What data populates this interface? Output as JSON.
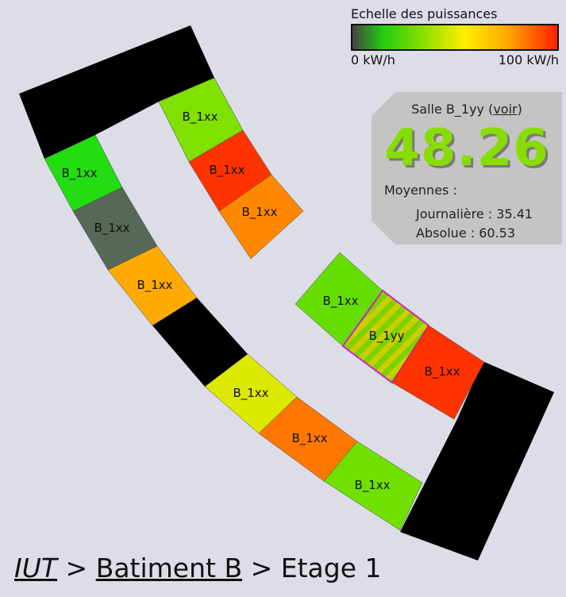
{
  "legend": {
    "title": "Echelle des puissances",
    "min_label": "0 kW/h",
    "max_label": "100 kW/h"
  },
  "info_panel": {
    "room_prefix": "Salle B_1yy (",
    "view_link": "voir",
    "room_suffix": ")",
    "power_value": "48.26",
    "averages_title": "Moyennes :",
    "daily": "Journalière : 35.41",
    "absolute": "Absolue : 60.53"
  },
  "breadcrumb": {
    "root": "IUT",
    "sep1": " > ",
    "building": "Batiment B",
    "sep2": " > ",
    "floor": "Etage 1"
  },
  "colors": {
    "background": "#dddde8",
    "panel": "#c4c4c4",
    "selected_outline": "#cc22cc",
    "power_value": "#88dd00"
  },
  "rooms": [
    {
      "label": "B_1xx",
      "color": "#80e000"
    },
    {
      "label": "B_1xx",
      "color": "#ff3300"
    },
    {
      "label": "B_1xx",
      "color": "#ff8800"
    },
    {
      "label": "B_1xx",
      "color": "#22dd11"
    },
    {
      "label": "B_1xx",
      "color": "#586858"
    },
    {
      "label": "B_1xx",
      "color": "#ffaa00"
    },
    {
      "label": "B_1xx",
      "color": "#dde800"
    },
    {
      "label": "B_1xx",
      "color": "#ff7700"
    },
    {
      "label": "B_1xx",
      "color": "#70e000"
    },
    {
      "label": "B_1xx",
      "color": "#66dd00"
    },
    {
      "label": "B_1yy",
      "color": "#a8c820",
      "selected": true
    },
    {
      "label": "B_1xx",
      "color": "#ff3300"
    }
  ]
}
